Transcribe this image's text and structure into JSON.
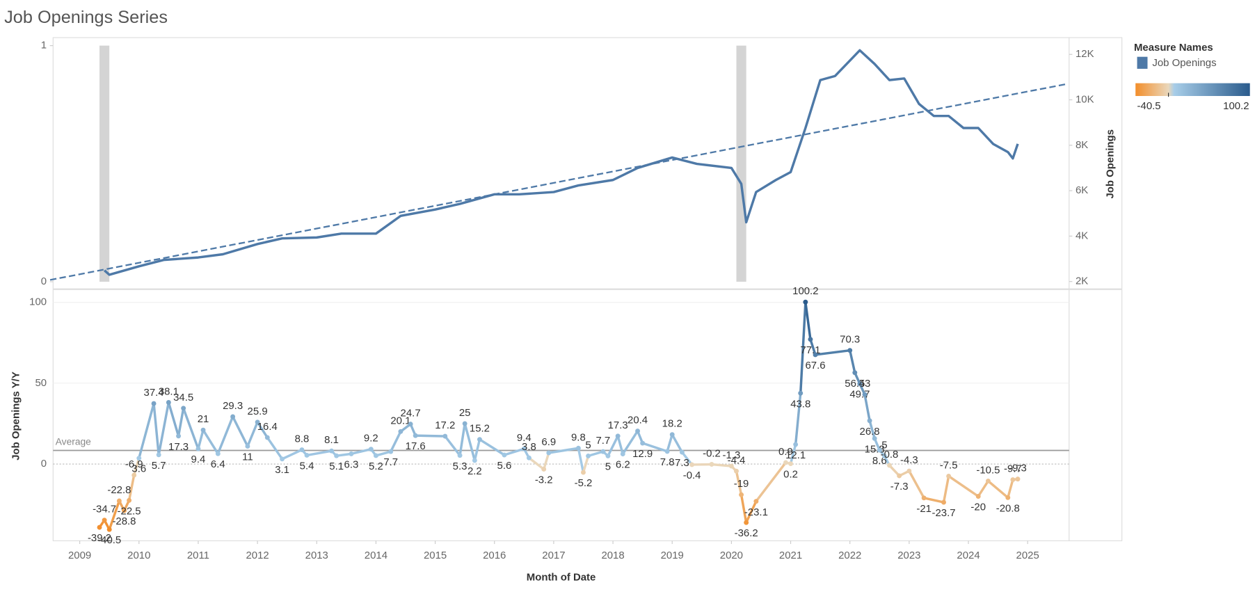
{
  "chart_data": [
    {
      "type": "line",
      "title": "Job Openings Series",
      "y2_label": "Job Openings",
      "legend_title": "Measure Names",
      "xlim": [
        2008.55,
        2025.7
      ],
      "ylim": [
        -0.03,
        1.034
      ],
      "yticks": [
        0,
        1
      ],
      "y2lim": [
        1680,
        12740
      ],
      "y2ticks": [
        {
          "value": 2000,
          "label": "2K"
        },
        {
          "value": 4000,
          "label": "4K"
        },
        {
          "value": 6000,
          "label": "6K"
        },
        {
          "value": 8000,
          "label": "8K"
        },
        {
          "value": 10000,
          "label": "10K"
        },
        {
          "value": 12000,
          "label": "12K"
        }
      ],
      "bands": [
        {
          "start": "2009-05",
          "end": "2009-07",
          "value": 1,
          "color": "#d4d4d4"
        },
        {
          "start": "2020-02",
          "end": "2020-04",
          "value": 1,
          "color": "#d4d4d4"
        }
      ],
      "trend": {
        "x": [
          "2008-07",
          "2025-09"
        ],
        "values": [
          2070,
          10700
        ],
        "color": "#4e79a7"
      },
      "series": [
        {
          "name": "Job Openings",
          "color": "#4e79a7",
          "axis": "y2",
          "x": [
            "2009-06",
            "2009-07",
            "2010-01",
            "2010-06",
            "2011-01",
            "2011-06",
            "2012-01",
            "2012-06",
            "2013-01",
            "2013-06",
            "2014-01",
            "2014-06",
            "2015-01",
            "2015-06",
            "2016-01",
            "2016-06",
            "2017-01",
            "2017-06",
            "2018-01",
            "2018-06",
            "2019-01",
            "2019-06",
            "2020-01",
            "2020-03",
            "2020-04",
            "2020-06",
            "2020-10",
            "2021-01",
            "2021-04",
            "2021-07",
            "2021-10",
            "2022-03",
            "2022-06",
            "2022-09",
            "2022-12",
            "2023-03",
            "2023-06",
            "2023-09",
            "2023-12",
            "2024-03",
            "2024-06",
            "2024-09",
            "2024-10",
            "2024-11"
          ],
          "values": [
            2490,
            2300,
            2670,
            2950,
            3060,
            3200,
            3650,
            3900,
            3940,
            4110,
            4110,
            4890,
            5170,
            5420,
            5840,
            5840,
            5940,
            6230,
            6470,
            7000,
            7460,
            7180,
            7000,
            6300,
            4610,
            5940,
            6470,
            6820,
            8760,
            10870,
            11050,
            12180,
            11580,
            10870,
            10940,
            9820,
            9290,
            9290,
            8760,
            8760,
            8060,
            7700,
            7420,
            8060
          ]
        }
      ]
    },
    {
      "type": "line",
      "y_label": "Job Openings Y/Y",
      "x_label": "Month of Date",
      "xlim": [
        2008.55,
        2025.7
      ],
      "xticks": [
        2009,
        2010,
        2011,
        2012,
        2013,
        2014,
        2015,
        2016,
        2017,
        2018,
        2019,
        2020,
        2021,
        2022,
        2023,
        2024,
        2025
      ],
      "ylim": [
        -47.5,
        107.9
      ],
      "yticks": [
        0,
        50,
        100
      ],
      "reference_line": {
        "label": "Average",
        "value": 8.4
      },
      "color_scale": {
        "min": -40.5,
        "max": 100.2,
        "colors": [
          "#f28e2b",
          "#ead7bb",
          "#a7cde8",
          "#2a5b8c"
        ]
      },
      "series": [
        {
          "name": "Job Openings Y/Y",
          "x": [
            "2009-05",
            "2009-06",
            "2009-07",
            "2009-09",
            "2009-10",
            "2009-11",
            "2009-12",
            "2010-01",
            "2010-04",
            "2010-05",
            "2010-07",
            "2010-09",
            "2010-10",
            "2011-01",
            "2011-02",
            "2011-05",
            "2011-08",
            "2011-11",
            "2012-01",
            "2012-03",
            "2012-06",
            "2012-10",
            "2012-11",
            "2013-04",
            "2013-05",
            "2013-08",
            "2013-12",
            "2014-01",
            "2014-04",
            "2014-06",
            "2014-08",
            "2014-09",
            "2015-03",
            "2015-06",
            "2015-07",
            "2015-09",
            "2015-10",
            "2016-03",
            "2016-07",
            "2016-08",
            "2016-11",
            "2016-12",
            "2017-06",
            "2017-07",
            "2017-08",
            "2017-11",
            "2017-12",
            "2018-02",
            "2018-03",
            "2018-06",
            "2018-07",
            "2018-12",
            "2019-01",
            "2019-03",
            "2019-05",
            "2019-09",
            "2020-01",
            "2020-02",
            "2020-03",
            "2020-04",
            "2020-06",
            "2020-12",
            "2021-01",
            "2021-02",
            "2021-03",
            "2021-04",
            "2021-05",
            "2021-06",
            "2022-01",
            "2022-02",
            "2022-03",
            "2022-04",
            "2022-05",
            "2022-06",
            "2022-07",
            "2022-08",
            "2022-09",
            "2022-11",
            "2023-01",
            "2023-04",
            "2023-08",
            "2023-09",
            "2024-03",
            "2024-05",
            "2024-09",
            "2024-10",
            "2024-11"
          ],
          "values": [
            -39.2,
            -34.7,
            -40.5,
            -22.8,
            -28.8,
            -22.5,
            -6.9,
            3.6,
            37.4,
            5.7,
            38.1,
            17.3,
            34.5,
            9.4,
            21.0,
            6.4,
            29.3,
            11.0,
            25.9,
            16.4,
            3.1,
            8.8,
            5.4,
            8.1,
            5.1,
            6.3,
            9.2,
            5.2,
            7.7,
            20.1,
            24.7,
            17.6,
            17.2,
            5.3,
            25.0,
            2.2,
            15.2,
            5.6,
            9.4,
            3.8,
            -3.2,
            6.9,
            9.8,
            -5.2,
            5.0,
            7.7,
            5.0,
            17.3,
            6.2,
            20.4,
            12.9,
            7.8,
            18.2,
            7.3,
            -0.4,
            -0.2,
            -1.3,
            -4.4,
            -19.0,
            -36.2,
            -23.1,
            0.9,
            0.2,
            12.1,
            43.8,
            100.2,
            77.1,
            67.6,
            70.3,
            56.5,
            49.7,
            43.0,
            26.8,
            15.8,
            8.6,
            5.0,
            -0.8,
            -7.3,
            -4.3,
            -21.0,
            -23.7,
            -7.5,
            -20.0,
            -10.5,
            -20.8,
            -9.7,
            -9.3
          ]
        }
      ]
    }
  ]
}
